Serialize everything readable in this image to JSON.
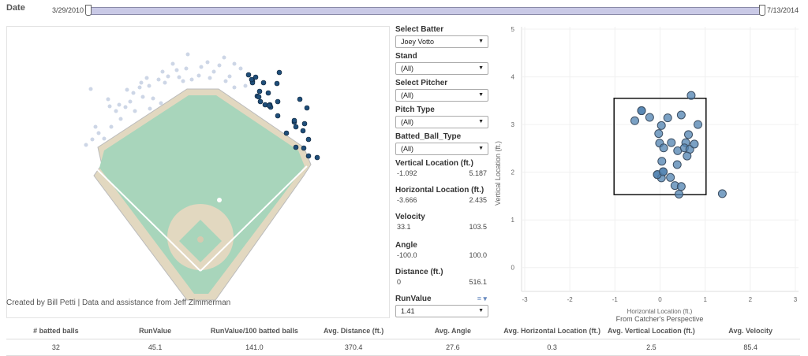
{
  "date_filter": {
    "label": "Date",
    "start": "3/29/2010",
    "end": "7/13/2014",
    "range_fraction": [
      0,
      1
    ]
  },
  "credits": "Created by Bill Petti | Data and assistance from Jeff Zimmerman",
  "controls": {
    "select_batter": {
      "label": "Select Batter",
      "value": "Joey Votto"
    },
    "stand": {
      "label": "Stand",
      "value": "(All)"
    },
    "select_pitcher": {
      "label": "Select Pitcher",
      "value": "(All)"
    },
    "pitch_type": {
      "label": "Pitch Type",
      "value": "(All)"
    },
    "batted_ball_type": {
      "label": "Batted_Ball_Type",
      "value": "(All)"
    },
    "vertical_location": {
      "label": "Vertical Location (ft.)",
      "min": "-1.092",
      "max": "5.187"
    },
    "horizontal_location": {
      "label": "Horizontal Location (ft.)",
      "min": "-3.666",
      "max": "2.435"
    },
    "velocity": {
      "label": "Velocity",
      "min": "33.1",
      "max": "103.5"
    },
    "angle": {
      "label": "Angle",
      "min": "-100.0",
      "max": "100.0"
    },
    "distance": {
      "label": "Distance (ft.)",
      "min": "0",
      "max": "516.1"
    },
    "run_value": {
      "label": "RunValue",
      "value": "1.41"
    }
  },
  "colors": {
    "highlight_hit": "#1f4e79",
    "other_hit": "#cdd6e6",
    "field_grass": "#a8d5bb",
    "field_dirt": "#e2d8c0",
    "pitch_point": "#4f81b0"
  },
  "chart_data": {
    "type": "scatter",
    "xlabel": "Horizontal Location (ft.)",
    "ylabel": "Vertical Location (ft.)",
    "subtitle": "From Catcher's Perspective",
    "xlim": [
      -3.07,
      3.07
    ],
    "ylim": [
      -0.5,
      5.05
    ],
    "xticks": [
      "-3",
      "-2",
      "-1",
      "0",
      "1",
      "2",
      "3"
    ],
    "yticks": [
      "0",
      "1",
      "2",
      "3",
      "4",
      "5"
    ],
    "grid": true,
    "strike_zone": {
      "x": [
        -1.02,
        1.02
      ],
      "y": [
        1.53,
        3.55
      ]
    },
    "points": [
      [
        0.69,
        3.61
      ],
      [
        -0.41,
        3.29
      ],
      [
        -0.56,
        3.08
      ],
      [
        -0.23,
        3.15
      ],
      [
        0.17,
        3.14
      ],
      [
        0.47,
        3.2
      ],
      [
        0.84,
        3.0
      ],
      [
        0.03,
        2.98
      ],
      [
        -0.03,
        2.81
      ],
      [
        0.63,
        2.79
      ],
      [
        -0.01,
        2.61
      ],
      [
        0.25,
        2.62
      ],
      [
        0.08,
        2.51
      ],
      [
        0.39,
        2.45
      ],
      [
        0.57,
        2.62
      ],
      [
        0.54,
        2.51
      ],
      [
        0.66,
        2.48
      ],
      [
        0.76,
        2.59
      ],
      [
        0.6,
        2.34
      ],
      [
        0.04,
        2.23
      ],
      [
        0.38,
        2.16
      ],
      [
        -0.06,
        1.95
      ],
      [
        0.07,
        2.01
      ],
      [
        0.03,
        1.88
      ],
      [
        0.23,
        1.89
      ],
      [
        0.33,
        1.72
      ],
      [
        0.47,
        1.7
      ],
      [
        0.42,
        1.54
      ],
      [
        1.38,
        1.55
      ],
      [
        -0.41,
        3.29
      ],
      [
        -0.06,
        1.95
      ],
      [
        0.07,
        2.01
      ]
    ]
  },
  "summary": {
    "headers": [
      "# batted balls",
      "RunValue",
      "RunValue/100 batted balls",
      "Avg. Distance (ft.)",
      "Avg. Angle",
      "Avg. Horizontal Location (ft.)",
      "Avg. Vertical Location (ft.)",
      "Avg. Velocity"
    ],
    "values": [
      "32",
      "45.1",
      "141.0",
      "370.4",
      "27.6",
      "0.3",
      "2.5",
      "85.4"
    ]
  }
}
